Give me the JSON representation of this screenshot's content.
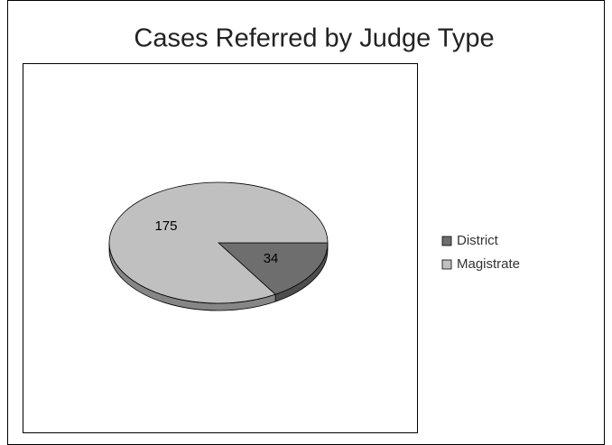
{
  "chart_data": {
    "type": "pie",
    "title": "Cases Referred by Judge Type",
    "categories": [
      "District",
      "Magistrate"
    ],
    "values": [
      34,
      175
    ],
    "colors": [
      "#6e6e6e",
      "#c0c0c0"
    ]
  }
}
